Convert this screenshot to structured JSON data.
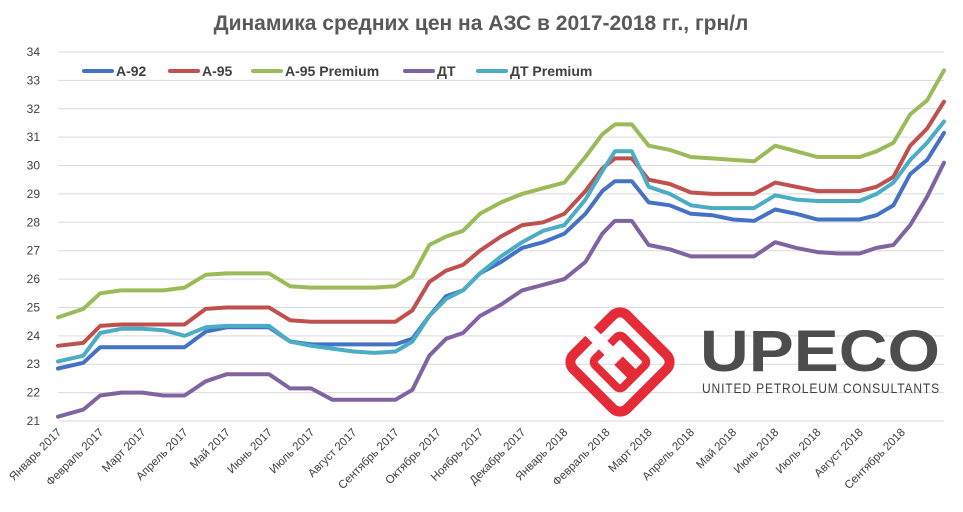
{
  "chart_data": {
    "type": "line",
    "title": "Динамика средних цен на АЗС в 2017-2018 гг., грн/л",
    "ylim": [
      21,
      34
    ],
    "yticks": [
      "21",
      "22",
      "23",
      "24",
      "25",
      "26",
      "27",
      "28",
      "29",
      "30",
      "31",
      "32",
      "33",
      "34"
    ],
    "grid": true,
    "legend_position": "top-left",
    "categories": [
      "Январь 2017",
      "Февраль 2017",
      "Март 2017",
      "Апрель 2017",
      "Май 2017",
      "Июнь 2017",
      "Июль 2017",
      "Август 2017",
      "Сентябрь 2017",
      "Октябрь 2017",
      "Ноябрь 2017",
      "Декабрь 2017",
      "Январь 2018",
      "Февраль 2018",
      "Март 2018",
      "Апрель 2018",
      "Май 2018",
      "Июнь 2018",
      "Июль 2018",
      "Август 2018",
      "Сентябрь 2018"
    ],
    "series": [
      {
        "name": "А-92",
        "color": "#4472c4",
        "x": [
          0,
          0.6,
          1,
          1.5,
          2,
          2.5,
          3,
          3.5,
          4,
          4.6,
          5,
          5.5,
          6,
          6.5,
          7,
          7.5,
          8,
          8.4,
          8.8,
          9.2,
          9.6,
          10,
          10.5,
          11,
          11.5,
          12,
          12.5,
          12.9,
          13.2,
          13.6,
          14,
          14.5,
          15,
          15.5,
          16,
          16.5,
          17,
          17.5,
          18,
          18.5,
          19,
          19.4,
          19.8,
          20.2,
          20.6,
          21
        ],
        "values": [
          22.85,
          23.05,
          23.6,
          23.6,
          23.6,
          23.6,
          23.6,
          24.15,
          24.3,
          24.3,
          24.3,
          23.8,
          23.7,
          23.7,
          23.7,
          23.7,
          23.7,
          23.9,
          24.7,
          25.4,
          25.6,
          26.2,
          26.6,
          27.1,
          27.3,
          27.6,
          28.3,
          29.1,
          29.45,
          29.45,
          28.7,
          28.6,
          28.3,
          28.25,
          28.1,
          28.05,
          28.45,
          28.3,
          28.1,
          28.1,
          28.1,
          28.25,
          28.6,
          29.7,
          30.2,
          31.15
        ]
      },
      {
        "name": "А-95",
        "color": "#c0504d",
        "x": [
          0,
          0.6,
          1,
          1.5,
          2,
          2.5,
          3,
          3.5,
          4,
          4.6,
          5,
          5.5,
          6,
          6.5,
          7,
          7.5,
          8,
          8.4,
          8.8,
          9.2,
          9.6,
          10,
          10.5,
          11,
          11.5,
          12,
          12.5,
          12.9,
          13.2,
          13.6,
          14,
          14.5,
          15,
          15.5,
          16,
          16.5,
          17,
          17.5,
          18,
          18.5,
          19,
          19.4,
          19.8,
          20.2,
          20.6,
          21
        ],
        "values": [
          23.65,
          23.75,
          24.35,
          24.4,
          24.4,
          24.4,
          24.4,
          24.95,
          25.0,
          25.0,
          25.0,
          24.55,
          24.5,
          24.5,
          24.5,
          24.5,
          24.5,
          24.9,
          25.9,
          26.3,
          26.5,
          27.0,
          27.5,
          27.9,
          28.0,
          28.3,
          29.1,
          29.9,
          30.25,
          30.25,
          29.5,
          29.35,
          29.05,
          29.0,
          29.0,
          29.0,
          29.4,
          29.25,
          29.1,
          29.1,
          29.1,
          29.25,
          29.6,
          30.7,
          31.3,
          32.25
        ]
      },
      {
        "name": "А-95 Premium",
        "color": "#9bbb59",
        "x": [
          0,
          0.6,
          1,
          1.5,
          2,
          2.5,
          3,
          3.5,
          4,
          4.6,
          5,
          5.5,
          6,
          6.5,
          7,
          7.5,
          8,
          8.4,
          8.8,
          9.2,
          9.6,
          10,
          10.5,
          11,
          11.5,
          12,
          12.5,
          12.9,
          13.2,
          13.6,
          14,
          14.5,
          15,
          15.5,
          16,
          16.5,
          17,
          17.5,
          18,
          18.5,
          19,
          19.4,
          19.8,
          20.2,
          20.6,
          21
        ],
        "values": [
          24.65,
          24.95,
          25.5,
          25.6,
          25.6,
          25.6,
          25.7,
          26.15,
          26.2,
          26.2,
          26.2,
          25.75,
          25.7,
          25.7,
          25.7,
          25.7,
          25.75,
          26.1,
          27.2,
          27.5,
          27.7,
          28.3,
          28.7,
          29.0,
          29.2,
          29.4,
          30.3,
          31.1,
          31.45,
          31.45,
          30.7,
          30.55,
          30.3,
          30.25,
          30.2,
          30.15,
          30.7,
          30.5,
          30.3,
          30.3,
          30.3,
          30.5,
          30.8,
          31.8,
          32.3,
          33.35
        ]
      },
      {
        "name": "ДТ",
        "color": "#8064a2",
        "x": [
          0,
          0.6,
          1,
          1.5,
          2,
          2.5,
          3,
          3.5,
          4,
          4.6,
          5,
          5.5,
          6,
          6.5,
          7,
          7.5,
          8,
          8.4,
          8.8,
          9.2,
          9.6,
          10,
          10.5,
          11,
          11.5,
          12,
          12.5,
          12.9,
          13.2,
          13.6,
          14,
          14.5,
          15,
          15.5,
          16,
          16.5,
          17,
          17.5,
          18,
          18.5,
          19,
          19.4,
          19.8,
          20.2,
          20.6,
          21
        ],
        "values": [
          21.15,
          21.4,
          21.9,
          22.0,
          22.0,
          21.9,
          21.9,
          22.4,
          22.65,
          22.65,
          22.65,
          22.15,
          22.15,
          21.75,
          21.75,
          21.75,
          21.75,
          22.1,
          23.3,
          23.9,
          24.1,
          24.7,
          25.1,
          25.6,
          25.8,
          26.0,
          26.6,
          27.6,
          28.05,
          28.05,
          27.2,
          27.05,
          26.8,
          26.8,
          26.8,
          26.8,
          27.3,
          27.1,
          26.95,
          26.9,
          26.9,
          27.1,
          27.2,
          27.9,
          28.9,
          30.1
        ]
      },
      {
        "name": "ДТ Premium",
        "color": "#4bacc6",
        "x": [
          0,
          0.6,
          1,
          1.5,
          2,
          2.5,
          3,
          3.5,
          4,
          4.6,
          5,
          5.5,
          6,
          6.5,
          7,
          7.5,
          8,
          8.4,
          8.8,
          9.2,
          9.6,
          10,
          10.5,
          11,
          11.5,
          12,
          12.5,
          12.9,
          13.2,
          13.6,
          14,
          14.5,
          15,
          15.5,
          16,
          16.5,
          17,
          17.5,
          18,
          18.5,
          19,
          19.4,
          19.8,
          20.2,
          20.6,
          21
        ],
        "values": [
          23.1,
          23.3,
          24.1,
          24.25,
          24.25,
          24.2,
          24.0,
          24.3,
          24.35,
          24.35,
          24.35,
          23.8,
          23.65,
          23.55,
          23.45,
          23.4,
          23.45,
          23.8,
          24.7,
          25.3,
          25.6,
          26.2,
          26.8,
          27.3,
          27.7,
          27.9,
          28.8,
          29.8,
          30.5,
          30.5,
          29.25,
          29.0,
          28.6,
          28.5,
          28.5,
          28.5,
          28.95,
          28.8,
          28.75,
          28.75,
          28.75,
          29.0,
          29.4,
          30.2,
          30.8,
          31.55
        ]
      }
    ]
  },
  "logo": {
    "wordmark": "UPECO",
    "tagline": "UNITED PETROLEUM CONSULTANTS",
    "emblem_color": "#e52b38",
    "wordmark_color": "#4d4d4d"
  }
}
